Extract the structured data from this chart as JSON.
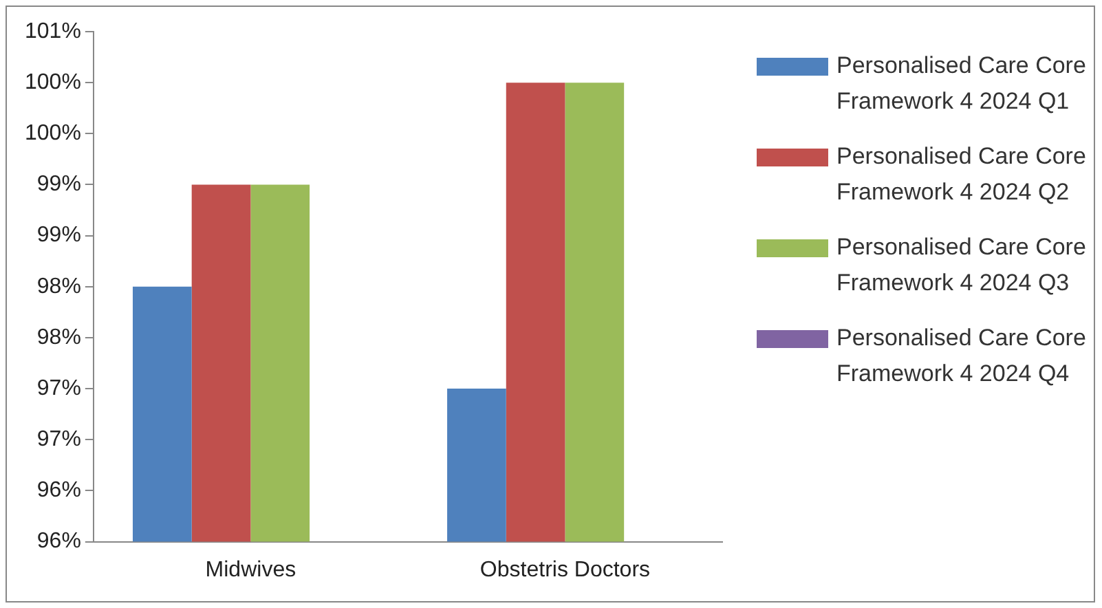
{
  "chart_data": {
    "type": "bar",
    "categories": [
      "Midwives",
      "Obstetris Doctors"
    ],
    "series": [
      {
        "name": "Personalised Care Core Framework 4 2024 Q1",
        "color": "#4f81bd",
        "values": [
          98.0,
          97.0
        ]
      },
      {
        "name": "Personalised Care Core Framework 4 2024 Q2",
        "color": "#c0504d",
        "values": [
          99.0,
          100.0
        ]
      },
      {
        "name": "Personalised Care Core Framework 4 2024 Q3",
        "color": "#9bbb59",
        "values": [
          99.0,
          100.0
        ]
      },
      {
        "name": "Personalised Care Core Framework 4 2024 Q4",
        "color": "#8064a2",
        "values": [
          null,
          null
        ]
      }
    ],
    "ylim": [
      95.5,
      100.5
    ],
    "yticks": [
      {
        "value": 95.5,
        "label": "96%"
      },
      {
        "value": 96,
        "label": "96%"
      },
      {
        "value": 96.5,
        "label": "97%"
      },
      {
        "value": 97,
        "label": "97%"
      },
      {
        "value": 97.5,
        "label": "98%"
      },
      {
        "value": 98,
        "label": "98%"
      },
      {
        "value": 98.5,
        "label": "99%"
      },
      {
        "value": 99,
        "label": "99%"
      },
      {
        "value": 99.5,
        "label": "100%"
      },
      {
        "value": 100,
        "label": "100%"
      },
      {
        "value": 100.5,
        "label": "101%"
      }
    ],
    "grid": false,
    "legend": "right"
  }
}
